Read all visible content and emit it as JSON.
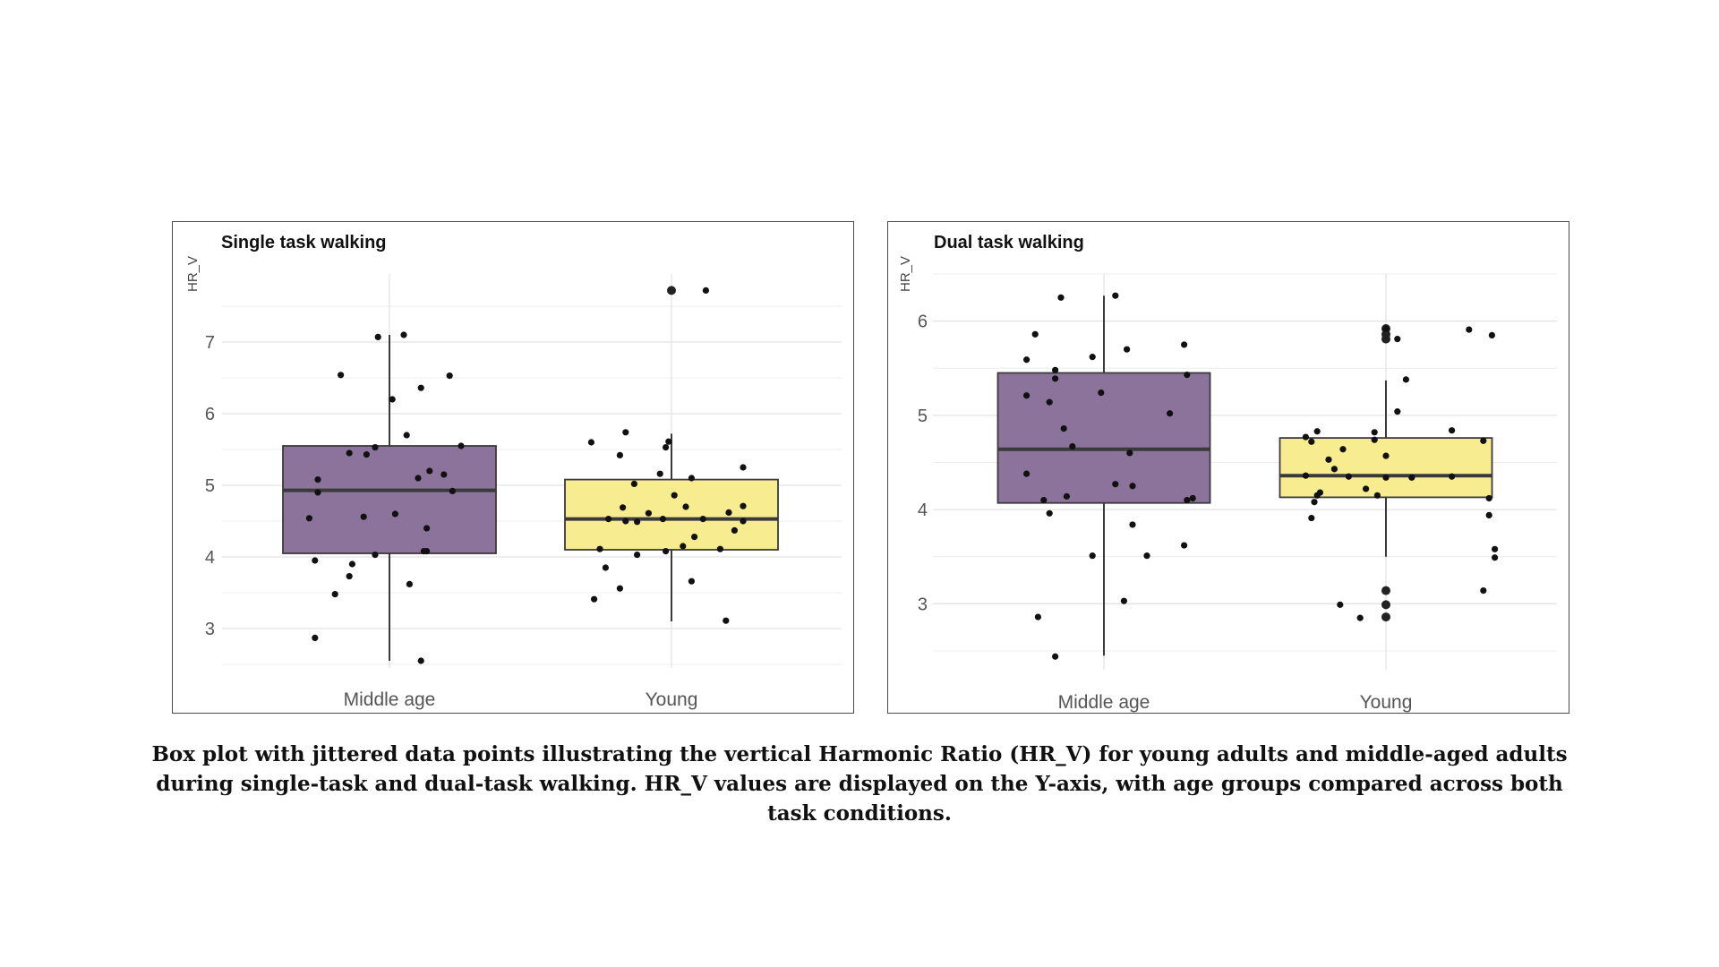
{
  "caption": "Box plot with jittered data points illustrating the vertical Harmonic Ratio (HR_V) for young adults and middle-aged adults during single-task and dual-task walking. HR_V values are displayed on the Y-axis, with age groups compared across both task conditions.",
  "colors": {
    "middle_age_fill": "#8b739b",
    "young_fill": "#f8ec91",
    "box_stroke": "#3a3a3a",
    "point": "#111111",
    "grid": "#e3e3e3"
  },
  "chart_data": [
    {
      "type": "box",
      "title": "Single task walking",
      "ylabel": "HR_V",
      "xlabel": "",
      "categories": [
        "Middle age",
        "Young"
      ],
      "yticks": [
        3,
        4,
        5,
        6,
        7
      ],
      "ylim": [
        2.45,
        7.95
      ],
      "grid": true,
      "boxes": [
        {
          "category": "Middle age",
          "whisker_low": 2.55,
          "q1": 4.05,
          "median": 4.93,
          "q3": 5.55,
          "whisker_high": 7.1,
          "color": "#8b739b"
        },
        {
          "category": "Young",
          "whisker_low": 3.1,
          "q1": 4.1,
          "median": 4.53,
          "q3": 5.08,
          "whisker_high": 5.72,
          "color": "#f8ec91"
        }
      ],
      "outliers": [
        {
          "category": "Young",
          "value": 7.72
        }
      ],
      "points": [
        {
          "category": "Middle age",
          "jitter": -0.26,
          "value": 2.87
        },
        {
          "category": "Middle age",
          "jitter": -0.19,
          "value": 3.48
        },
        {
          "category": "Middle age",
          "jitter": -0.14,
          "value": 3.73
        },
        {
          "category": "Middle age",
          "jitter": -0.13,
          "value": 3.9
        },
        {
          "category": "Middle age",
          "jitter": -0.26,
          "value": 3.95
        },
        {
          "category": "Middle age",
          "jitter": -0.28,
          "value": 4.54
        },
        {
          "category": "Middle age",
          "jitter": -0.25,
          "value": 4.9
        },
        {
          "category": "Middle age",
          "jitter": -0.25,
          "value": 5.08
        },
        {
          "category": "Middle age",
          "jitter": -0.17,
          "value": 6.54
        },
        {
          "category": "Middle age",
          "jitter": -0.14,
          "value": 5.45
        },
        {
          "category": "Middle age",
          "jitter": -0.09,
          "value": 4.56
        },
        {
          "category": "Middle age",
          "jitter": -0.08,
          "value": 5.43
        },
        {
          "category": "Middle age",
          "jitter": -0.05,
          "value": 5.53
        },
        {
          "category": "Middle age",
          "jitter": -0.05,
          "value": 4.03
        },
        {
          "category": "Middle age",
          "jitter": -0.04,
          "value": 7.07
        },
        {
          "category": "Middle age",
          "jitter": 0.01,
          "value": 6.2
        },
        {
          "category": "Middle age",
          "jitter": 0.02,
          "value": 4.6
        },
        {
          "category": "Middle age",
          "jitter": 0.05,
          "value": 7.1
        },
        {
          "category": "Middle age",
          "jitter": 0.06,
          "value": 5.7
        },
        {
          "category": "Middle age",
          "jitter": 0.07,
          "value": 3.62
        },
        {
          "category": "Middle age",
          "jitter": 0.1,
          "value": 5.1
        },
        {
          "category": "Middle age",
          "jitter": 0.11,
          "value": 2.55
        },
        {
          "category": "Middle age",
          "jitter": 0.11,
          "value": 6.36
        },
        {
          "category": "Middle age",
          "jitter": 0.12,
          "value": 4.08
        },
        {
          "category": "Middle age",
          "jitter": 0.13,
          "value": 4.4
        },
        {
          "category": "Middle age",
          "jitter": 0.13,
          "value": 4.08
        },
        {
          "category": "Middle age",
          "jitter": 0.14,
          "value": 5.2
        },
        {
          "category": "Middle age",
          "jitter": 0.19,
          "value": 5.15
        },
        {
          "category": "Middle age",
          "jitter": 0.21,
          "value": 6.53
        },
        {
          "category": "Middle age",
          "jitter": 0.22,
          "value": 4.92
        },
        {
          "category": "Middle age",
          "jitter": 0.25,
          "value": 5.55
        },
        {
          "category": "Young",
          "jitter": -0.27,
          "value": 3.41
        },
        {
          "category": "Young",
          "jitter": -0.28,
          "value": 5.6
        },
        {
          "category": "Young",
          "jitter": -0.25,
          "value": 4.11
        },
        {
          "category": "Young",
          "jitter": -0.23,
          "value": 3.85
        },
        {
          "category": "Young",
          "jitter": -0.22,
          "value": 4.53
        },
        {
          "category": "Young",
          "jitter": -0.18,
          "value": 3.56
        },
        {
          "category": "Young",
          "jitter": -0.18,
          "value": 5.42
        },
        {
          "category": "Young",
          "jitter": -0.17,
          "value": 4.69
        },
        {
          "category": "Young",
          "jitter": -0.16,
          "value": 5.74
        },
        {
          "category": "Young",
          "jitter": -0.16,
          "value": 4.5
        },
        {
          "category": "Young",
          "jitter": -0.13,
          "value": 5.02
        },
        {
          "category": "Young",
          "jitter": -0.12,
          "value": 4.49
        },
        {
          "category": "Young",
          "jitter": -0.12,
          "value": 4.03
        },
        {
          "category": "Young",
          "jitter": -0.08,
          "value": 4.61
        },
        {
          "category": "Young",
          "jitter": -0.04,
          "value": 5.16
        },
        {
          "category": "Young",
          "jitter": -0.03,
          "value": 4.53
        },
        {
          "category": "Young",
          "jitter": -0.02,
          "value": 5.53
        },
        {
          "category": "Young",
          "jitter": -0.01,
          "value": 5.61
        },
        {
          "category": "Young",
          "jitter": -0.02,
          "value": 4.08
        },
        {
          "category": "Young",
          "jitter": 0.01,
          "value": 4.86
        },
        {
          "category": "Young",
          "jitter": 0.04,
          "value": 4.15
        },
        {
          "category": "Young",
          "jitter": 0.05,
          "value": 4.7
        },
        {
          "category": "Young",
          "jitter": 0.07,
          "value": 3.66
        },
        {
          "category": "Young",
          "jitter": 0.07,
          "value": 5.1
        },
        {
          "category": "Young",
          "jitter": 0.08,
          "value": 4.28
        },
        {
          "category": "Young",
          "jitter": 0.11,
          "value": 4.53
        },
        {
          "category": "Young",
          "jitter": 0.12,
          "value": 7.72
        },
        {
          "category": "Young",
          "jitter": 0.17,
          "value": 4.11
        },
        {
          "category": "Young",
          "jitter": 0.19,
          "value": 3.11
        },
        {
          "category": "Young",
          "jitter": 0.2,
          "value": 4.62
        },
        {
          "category": "Young",
          "jitter": 0.22,
          "value": 4.37
        },
        {
          "category": "Young",
          "jitter": 0.25,
          "value": 5.25
        },
        {
          "category": "Young",
          "jitter": 0.25,
          "value": 4.71
        },
        {
          "category": "Young",
          "jitter": 0.25,
          "value": 4.5
        }
      ]
    },
    {
      "type": "box",
      "title": "Dual task walking",
      "ylabel": "HR_V",
      "xlabel": "",
      "categories": [
        "Middle age",
        "Young"
      ],
      "yticks": [
        3,
        4,
        5,
        6
      ],
      "ylim": [
        2.3,
        6.5
      ],
      "grid": true,
      "boxes": [
        {
          "category": "Middle age",
          "whisker_low": 2.45,
          "q1": 4.07,
          "median": 4.64,
          "q3": 5.45,
          "whisker_high": 6.27,
          "color": "#8b739b"
        },
        {
          "category": "Young",
          "whisker_low": 3.5,
          "q1": 4.13,
          "median": 4.36,
          "q3": 4.76,
          "whisker_high": 5.37,
          "color": "#f8ec91"
        }
      ],
      "outliers": [
        {
          "category": "Young",
          "value": 5.92
        },
        {
          "category": "Young",
          "value": 5.86
        },
        {
          "category": "Young",
          "value": 5.81
        },
        {
          "category": "Young",
          "value": 3.14
        },
        {
          "category": "Young",
          "value": 2.99
        },
        {
          "category": "Young",
          "value": 2.86
        }
      ],
      "points": [
        {
          "category": "Middle age",
          "jitter": -0.27,
          "value": 5.59
        },
        {
          "category": "Middle age",
          "jitter": -0.27,
          "value": 5.21
        },
        {
          "category": "Middle age",
          "jitter": -0.27,
          "value": 4.38
        },
        {
          "category": "Middle age",
          "jitter": -0.24,
          "value": 5.86
        },
        {
          "category": "Middle age",
          "jitter": -0.23,
          "value": 2.86
        },
        {
          "category": "Middle age",
          "jitter": -0.21,
          "value": 4.1
        },
        {
          "category": "Middle age",
          "jitter": -0.19,
          "value": 5.14
        },
        {
          "category": "Middle age",
          "jitter": -0.19,
          "value": 3.96
        },
        {
          "category": "Middle age",
          "jitter": -0.17,
          "value": 5.48
        },
        {
          "category": "Middle age",
          "jitter": -0.17,
          "value": 5.39
        },
        {
          "category": "Middle age",
          "jitter": -0.17,
          "value": 2.44
        },
        {
          "category": "Middle age",
          "jitter": -0.15,
          "value": 6.25
        },
        {
          "category": "Middle age",
          "jitter": -0.14,
          "value": 4.86
        },
        {
          "category": "Middle age",
          "jitter": -0.13,
          "value": 4.14
        },
        {
          "category": "Middle age",
          "jitter": -0.11,
          "value": 4.67
        },
        {
          "category": "Middle age",
          "jitter": -0.04,
          "value": 5.62
        },
        {
          "category": "Middle age",
          "jitter": -0.04,
          "value": 3.51
        },
        {
          "category": "Middle age",
          "jitter": -0.01,
          "value": 5.24
        },
        {
          "category": "Middle age",
          "jitter": 0.04,
          "value": 4.27
        },
        {
          "category": "Middle age",
          "jitter": 0.04,
          "value": 6.27
        },
        {
          "category": "Middle age",
          "jitter": 0.07,
          "value": 3.03
        },
        {
          "category": "Middle age",
          "jitter": 0.08,
          "value": 5.7
        },
        {
          "category": "Middle age",
          "jitter": 0.09,
          "value": 4.6
        },
        {
          "category": "Middle age",
          "jitter": 0.1,
          "value": 3.84
        },
        {
          "category": "Middle age",
          "jitter": 0.1,
          "value": 4.25
        },
        {
          "category": "Middle age",
          "jitter": 0.15,
          "value": 3.51
        },
        {
          "category": "Middle age",
          "jitter": 0.23,
          "value": 5.02
        },
        {
          "category": "Middle age",
          "jitter": 0.28,
          "value": 3.62
        },
        {
          "category": "Middle age",
          "jitter": 0.28,
          "value": 5.75
        },
        {
          "category": "Middle age",
          "jitter": 0.29,
          "value": 5.43
        },
        {
          "category": "Middle age",
          "jitter": 0.29,
          "value": 4.1
        },
        {
          "category": "Middle age",
          "jitter": 0.31,
          "value": 4.12
        },
        {
          "category": "Young",
          "jitter": -0.28,
          "value": 4.36
        },
        {
          "category": "Young",
          "jitter": -0.28,
          "value": 4.77
        },
        {
          "category": "Young",
          "jitter": -0.26,
          "value": 3.91
        },
        {
          "category": "Young",
          "jitter": -0.26,
          "value": 4.72
        },
        {
          "category": "Young",
          "jitter": -0.25,
          "value": 4.08
        },
        {
          "category": "Young",
          "jitter": -0.24,
          "value": 4.83
        },
        {
          "category": "Young",
          "jitter": -0.24,
          "value": 4.15
        },
        {
          "category": "Young",
          "jitter": -0.23,
          "value": 4.18
        },
        {
          "category": "Young",
          "jitter": -0.2,
          "value": 4.53
        },
        {
          "category": "Young",
          "jitter": -0.18,
          "value": 4.43
        },
        {
          "category": "Young",
          "jitter": -0.16,
          "value": 2.99
        },
        {
          "category": "Young",
          "jitter": -0.15,
          "value": 4.64
        },
        {
          "category": "Young",
          "jitter": -0.13,
          "value": 4.35
        },
        {
          "category": "Young",
          "jitter": -0.09,
          "value": 2.85
        },
        {
          "category": "Young",
          "jitter": -0.07,
          "value": 4.22
        },
        {
          "category": "Young",
          "jitter": -0.04,
          "value": 4.82
        },
        {
          "category": "Young",
          "jitter": -0.04,
          "value": 4.74
        },
        {
          "category": "Young",
          "jitter": -0.03,
          "value": 4.15
        },
        {
          "category": "Young",
          "jitter": 0.0,
          "value": 4.57
        },
        {
          "category": "Young",
          "jitter": 0.0,
          "value": 4.34
        },
        {
          "category": "Young",
          "jitter": 0.0,
          "value": 5.92
        },
        {
          "category": "Young",
          "jitter": 0.04,
          "value": 5.04
        },
        {
          "category": "Young",
          "jitter": 0.04,
          "value": 5.81
        },
        {
          "category": "Young",
          "jitter": 0.07,
          "value": 5.38
        },
        {
          "category": "Young",
          "jitter": 0.09,
          "value": 4.34
        },
        {
          "category": "Young",
          "jitter": 0.23,
          "value": 4.84
        },
        {
          "category": "Young",
          "jitter": 0.23,
          "value": 4.35
        },
        {
          "category": "Young",
          "jitter": 0.29,
          "value": 5.91
        },
        {
          "category": "Young",
          "jitter": 0.34,
          "value": 3.14
        },
        {
          "category": "Young",
          "jitter": 0.34,
          "value": 4.73
        },
        {
          "category": "Young",
          "jitter": 0.36,
          "value": 4.12
        },
        {
          "category": "Young",
          "jitter": 0.36,
          "value": 3.94
        },
        {
          "category": "Young",
          "jitter": 0.37,
          "value": 5.85
        },
        {
          "category": "Young",
          "jitter": 0.38,
          "value": 3.49
        },
        {
          "category": "Young",
          "jitter": 0.38,
          "value": 3.58
        }
      ]
    }
  ]
}
